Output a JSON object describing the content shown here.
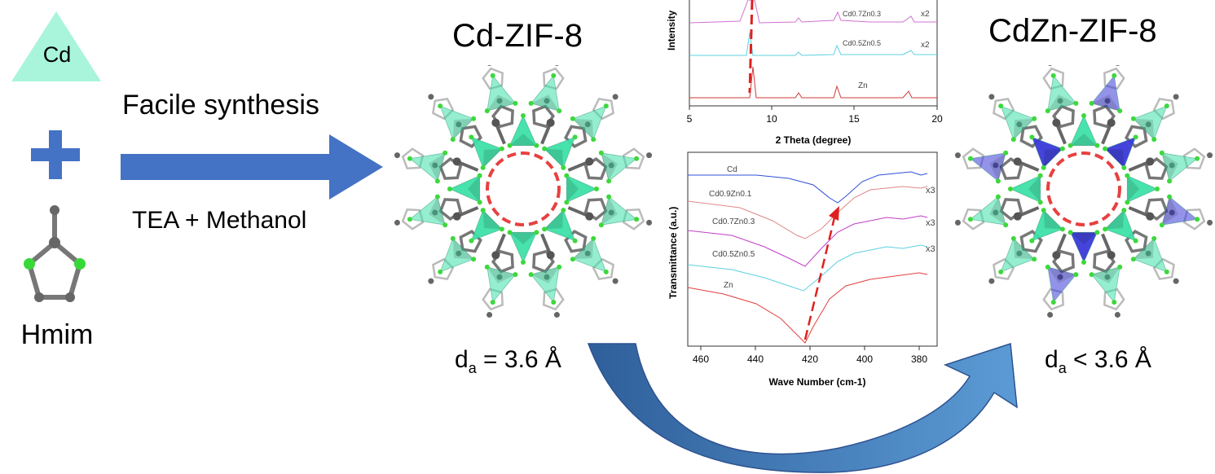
{
  "reactants": {
    "metal_label": "Cd",
    "ligand_label": "Hmim"
  },
  "synthesis": {
    "method": "Facile synthesis",
    "conditions": "TEA + Methanol"
  },
  "products": {
    "left_title": "Cd-ZIF-8",
    "left_aperture_base": "d",
    "left_aperture_sub": "a",
    "left_aperture_value": " = 3.6 Å",
    "right_title": "CdZn-ZIF-8",
    "right_aperture_base": "d",
    "right_aperture_sub": "a",
    "right_aperture_value": " < 3.6 Å"
  },
  "xrd_panel": {
    "ylabel": "Intensity",
    "xlabel": "2 Theta (degree)",
    "ticks": [
      "5",
      "10",
      "15",
      "20"
    ],
    "traces": [
      {
        "name": "Cd0.7Zn0.3",
        "factor": "x2"
      },
      {
        "name": "Cd0.5Zn0.5",
        "factor": "x2"
      },
      {
        "name": "Zn",
        "factor": ""
      }
    ]
  },
  "ftir_panel": {
    "ylabel": "Transmittance (a.u.)",
    "xlabel": "Wave Number (cm-1)",
    "ticks": [
      "460",
      "440",
      "420",
      "400",
      "380"
    ],
    "traces": [
      {
        "name": "Cd",
        "factor": ""
      },
      {
        "name": "Cd0.9Zn0.1",
        "factor": "x3"
      },
      {
        "name": "Cd0.7Zn0.3",
        "factor": "x3"
      },
      {
        "name": "Cd0.5Zn0.5",
        "factor": "x3"
      },
      {
        "name": "Zn",
        "factor": ""
      }
    ]
  },
  "colors": {
    "cd_tetrahedra": "#3ee0a8",
    "zn_tetrahedra": "#3a3ad8",
    "arrow_blue": "#4472c4",
    "pore_circle": "#e84040"
  }
}
